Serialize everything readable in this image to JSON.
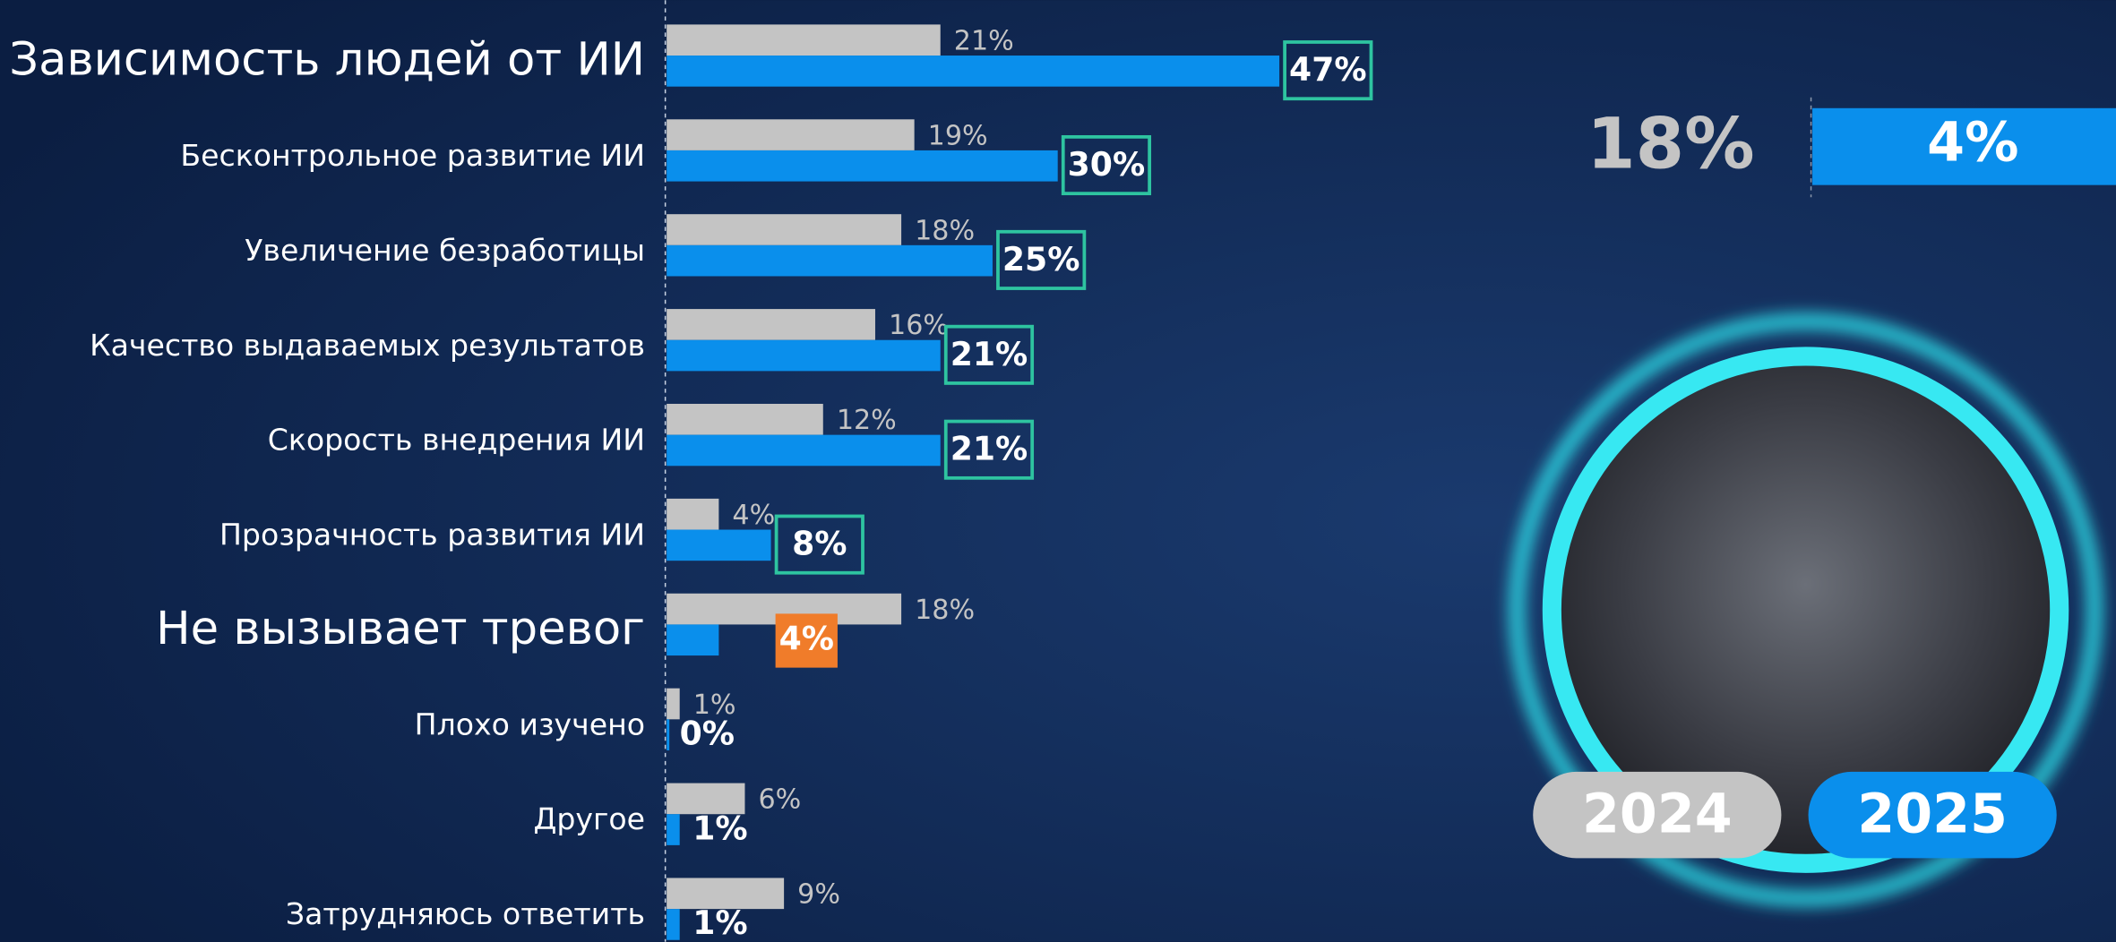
{
  "chart_data": {
    "type": "bar",
    "orientation": "horizontal",
    "categories": [
      "Зависимость людей от ИИ",
      "Бесконтрольное развитие ИИ",
      "Увеличение безработицы",
      "Качество выдаваемых результатов",
      "Скорость внедрения ИИ",
      "Прозрачность развития ИИ",
      "Не вызывает тревог",
      "Плохо изучено",
      "Другое",
      "Затрудняюсь ответить"
    ],
    "series": [
      {
        "name": "2024",
        "color": "#c4c4c4",
        "values": [
          21,
          19,
          18,
          16,
          12,
          4,
          18,
          1,
          6,
          9
        ],
        "value_labels": [
          "21%",
          "19%",
          "18%",
          "16%",
          "12%",
          "4%",
          "18%",
          "1%",
          "6%",
          "9%"
        ]
      },
      {
        "name": "2025",
        "color": "#0a8fec",
        "values": [
          47,
          30,
          25,
          21,
          21,
          8,
          4,
          0,
          1,
          1
        ],
        "value_labels": [
          "47%",
          "30%",
          "25%",
          "21%",
          "21%",
          "8%",
          "4%",
          "0%",
          "1%",
          "1%"
        ]
      }
    ],
    "xlim": [
      0,
      100
    ],
    "highlight": [
      0,
      6
    ],
    "label_box_color": "#2ec4a0",
    "highlight_color": "#f07c2a",
    "callout": {
      "values": [
        18,
        4
      ],
      "value_labels": [
        "18%",
        "4%"
      ]
    }
  }
}
